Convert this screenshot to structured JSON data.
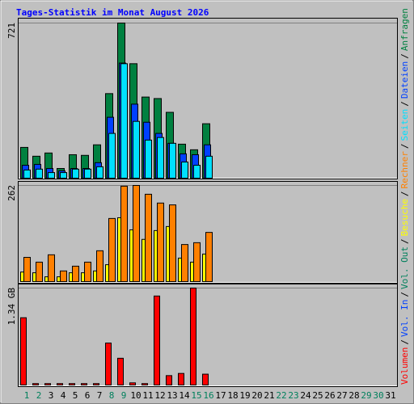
{
  "title": "Tages-Statistik im Monat August 2026",
  "legend_separator": "/",
  "chart_data": [
    {
      "type": "bar",
      "ylim": [
        0,
        721
      ],
      "yticks": [
        721
      ],
      "grid": true,
      "series": [
        {
          "name": "Anfragen",
          "color": "#008040",
          "values": [
            143,
            102,
            117,
            45,
            109,
            106,
            155,
            393,
            721,
            532,
            377,
            370,
            306,
            158,
            132,
            253,
            null,
            null,
            null,
            null,
            null,
            null,
            null,
            null,
            null,
            null,
            null,
            null,
            null,
            null,
            null
          ]
        },
        {
          "name": "Dateien",
          "color": "#0040FF",
          "values": [
            60,
            64,
            45,
            34,
            45,
            45,
            72,
            283,
            535,
            344,
            260,
            208,
            162,
            113,
            109,
            155,
            null,
            null,
            null,
            null,
            null,
            null,
            null,
            null,
            null,
            null,
            null,
            null,
            null,
            null,
            null
          ]
        },
        {
          "name": "Seiten",
          "color": "#00E0FF",
          "values": [
            38,
            42,
            26,
            26,
            42,
            42,
            53,
            208,
            532,
            264,
            177,
            189,
            162,
            75,
            60,
            102,
            null,
            null,
            null,
            null,
            null,
            null,
            null,
            null,
            null,
            null,
            null,
            null,
            null,
            null,
            null
          ]
        }
      ]
    },
    {
      "type": "bar",
      "ylim": [
        0,
        262
      ],
      "yticks": [
        262
      ],
      "grid": true,
      "series": [
        {
          "name": "Besuche",
          "color": "#FFFF00",
          "values": [
            26,
            24,
            13,
            13,
            24,
            24,
            29,
            46,
            174,
            141,
            115,
            139,
            150,
            64,
            53,
            75,
            null,
            null,
            null,
            null,
            null,
            null,
            null,
            null,
            null,
            null,
            null,
            null,
            null,
            null,
            null
          ]
        },
        {
          "name": "Rechner",
          "color": "#FF8000",
          "values": [
            66,
            53,
            73,
            29,
            42,
            53,
            84,
            172,
            260,
            262,
            238,
            214,
            209,
            101,
            106,
            134,
            null,
            null,
            null,
            null,
            null,
            null,
            null,
            null,
            null,
            null,
            null,
            null,
            null,
            null,
            null
          ]
        }
      ]
    },
    {
      "type": "bar",
      "ylim": [
        0,
        1.34
      ],
      "yticks": [
        {
          "value": 1.34,
          "label": "1.34 GB"
        }
      ],
      "grid": true,
      "categories": [
        "1",
        "2",
        "3",
        "4",
        "5",
        "6",
        "7",
        "8",
        "9",
        "10",
        "11",
        "12",
        "13",
        "14",
        "15",
        "16",
        "17",
        "18",
        "19",
        "20",
        "21",
        "22",
        "23",
        "24",
        "25",
        "26",
        "27",
        "28",
        "29",
        "30",
        "31"
      ],
      "category_colors": [
        "#00805C",
        "#00805C",
        "#000000",
        "#000000",
        "#000000",
        "#000000",
        "#000000",
        "#00805C",
        "#00805C",
        "#000000",
        "#000000",
        "#000000",
        "#000000",
        "#000000",
        "#00805C",
        "#00805C",
        "#000000",
        "#000000",
        "#000000",
        "#000000",
        "#000000",
        "#00805C",
        "#00805C",
        "#000000",
        "#000000",
        "#000000",
        "#000000",
        "#000000",
        "#00805C",
        "#00805C",
        "#000000"
      ],
      "series": [
        {
          "name": "Volumen",
          "color": "#FF0000",
          "values": [
            0.93,
            0.02,
            0.02,
            0.02,
            0.02,
            0.02,
            0.02,
            0.58,
            0.37,
            0.03,
            0.02,
            1.23,
            0.13,
            0.16,
            1.34,
            0.15,
            null,
            null,
            null,
            null,
            null,
            null,
            null,
            null,
            null,
            null,
            null,
            null,
            null,
            null,
            null
          ]
        },
        {
          "name": "Vol. In",
          "color": "#0040FF",
          "values": [
            0,
            0,
            0,
            0,
            0,
            0,
            0,
            0,
            0,
            0,
            0,
            0,
            0,
            0,
            0,
            0,
            null,
            null,
            null,
            null,
            null,
            null,
            null,
            null,
            null,
            null,
            null,
            null,
            null,
            null,
            null
          ]
        },
        {
          "name": "Vol. Out",
          "color": "#00805C",
          "values": [
            0,
            0,
            0,
            0,
            0,
            0,
            0,
            0,
            0,
            0,
            0,
            0,
            0,
            0,
            0,
            0,
            null,
            null,
            null,
            null,
            null,
            null,
            null,
            null,
            null,
            null,
            null,
            null,
            null,
            null,
            null
          ]
        }
      ]
    }
  ]
}
